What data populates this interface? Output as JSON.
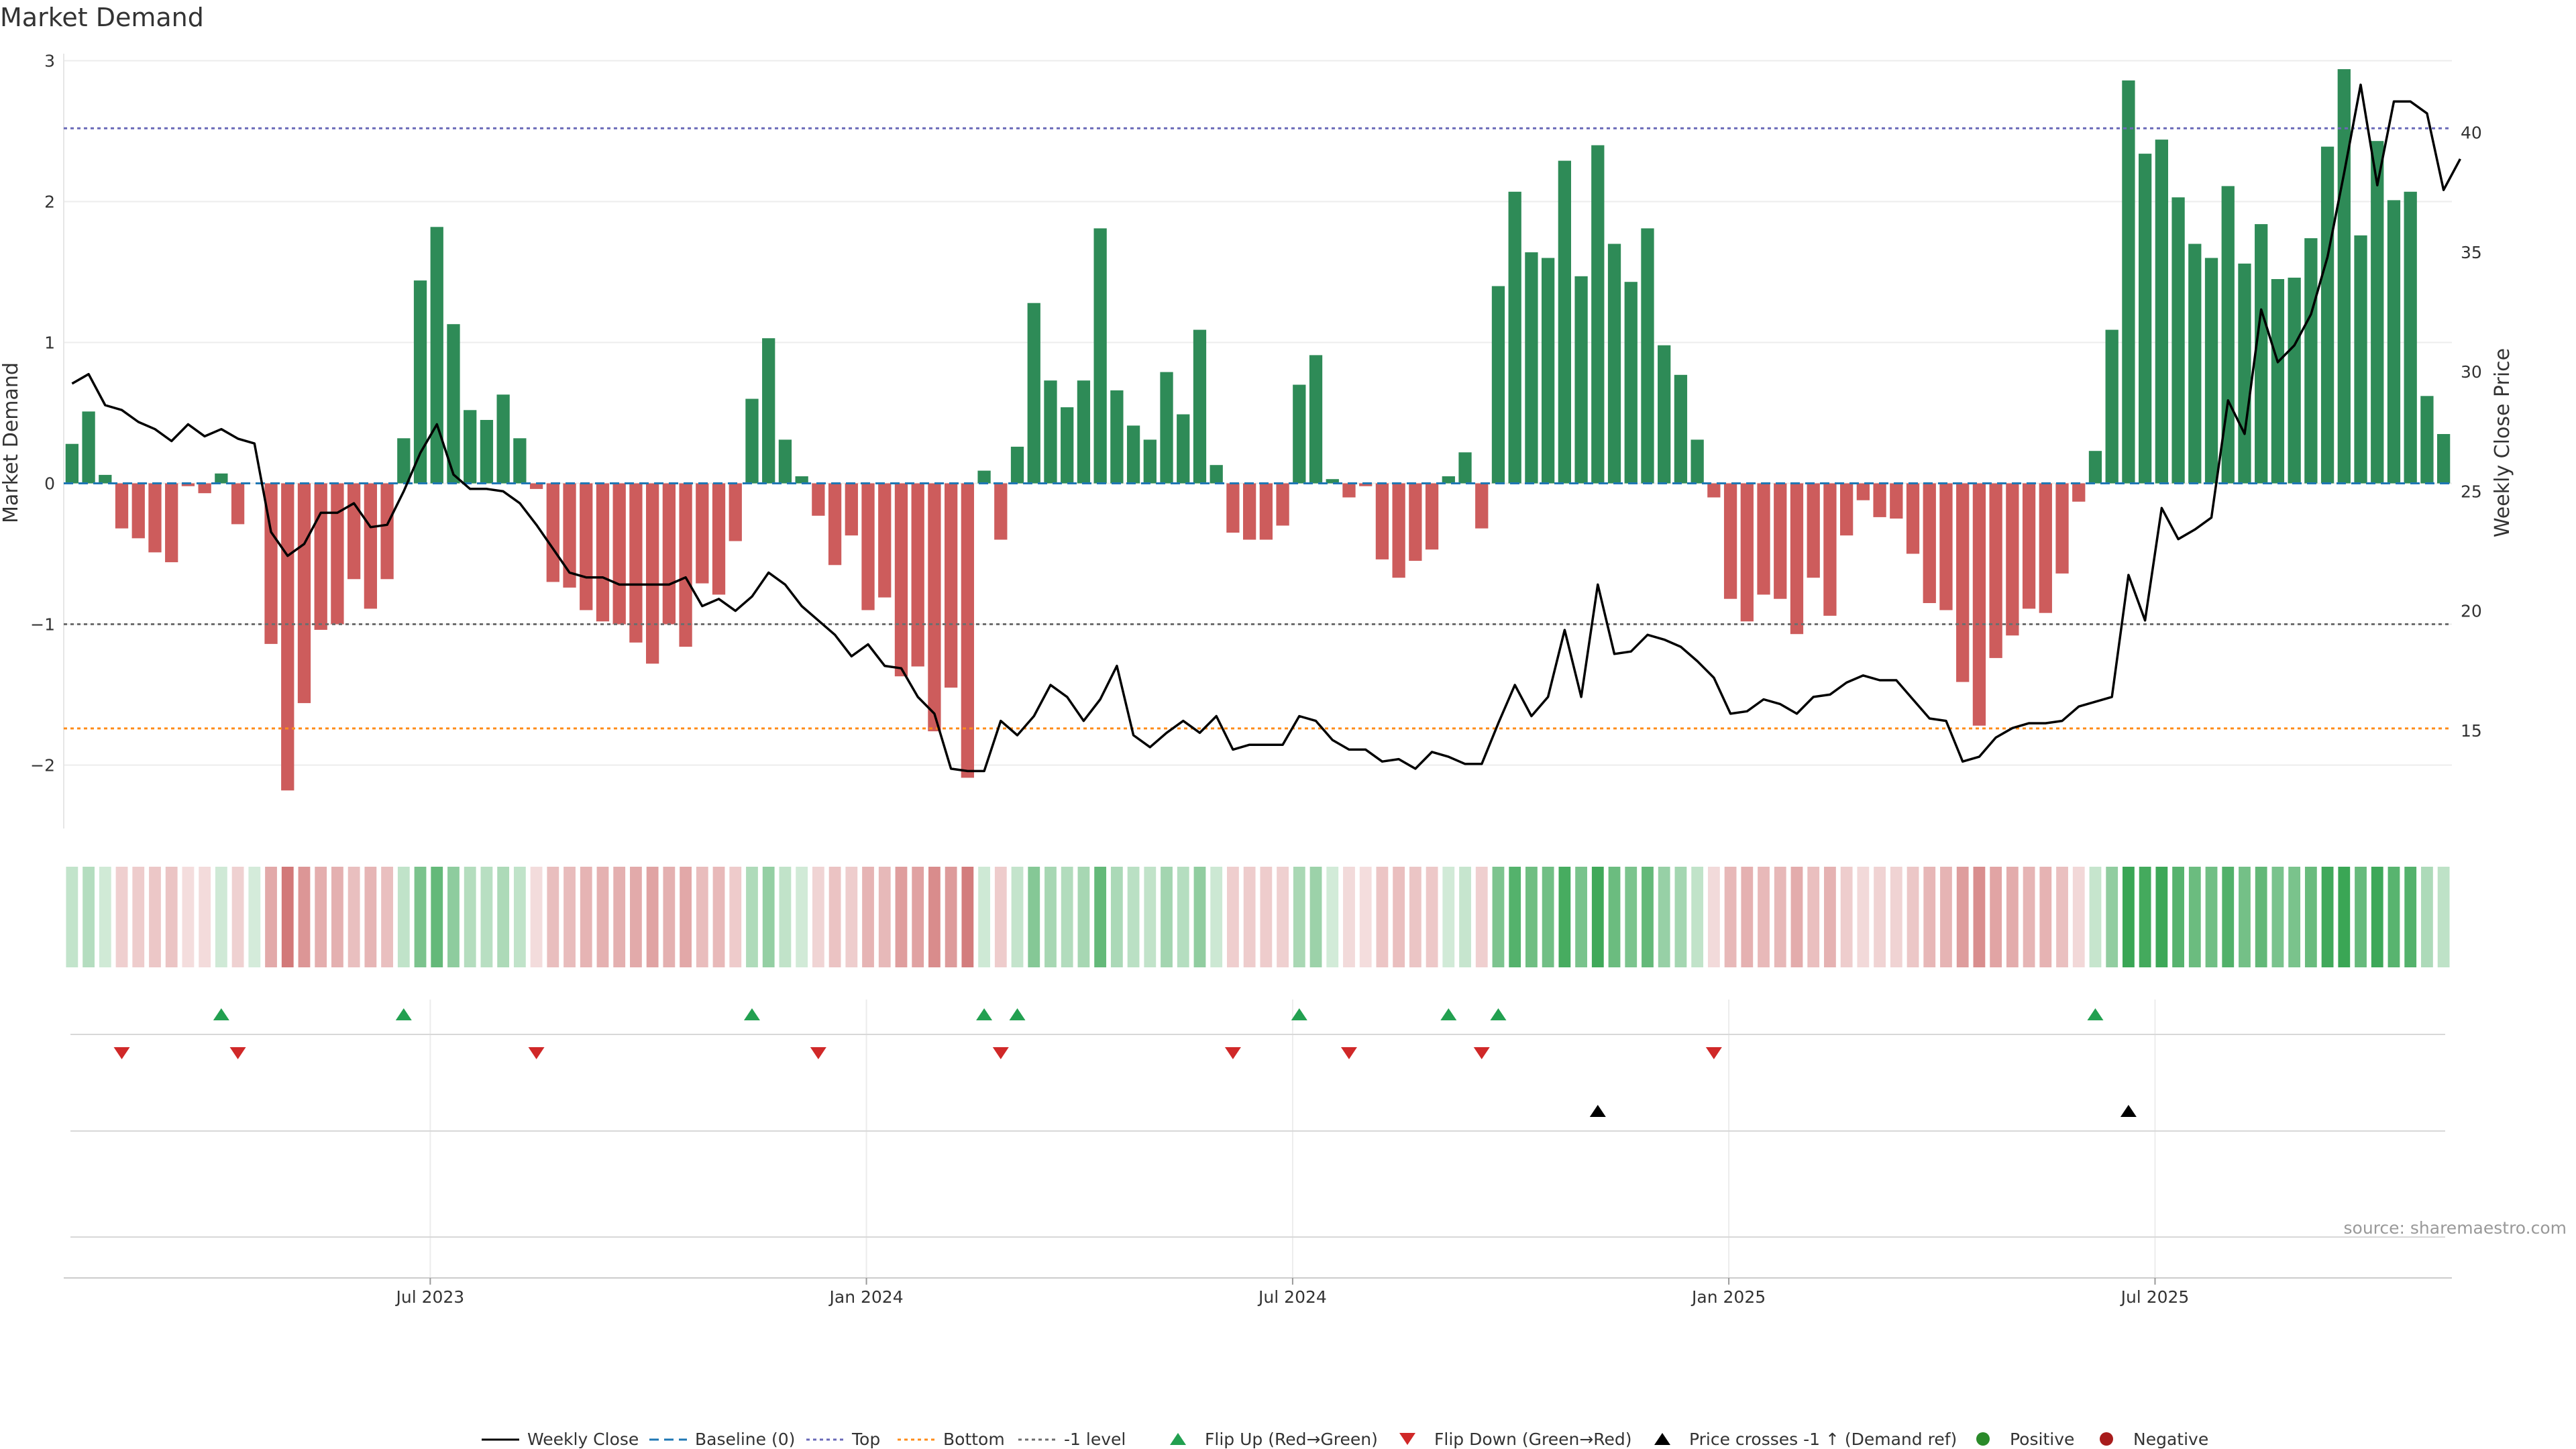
{
  "chart_data": {
    "type": "bar",
    "title": "Market Demand",
    "source": "source: sharemaestro.com",
    "left_axis": {
      "label": "Market Demand",
      "ylim": [
        -2.45,
        3.05
      ],
      "ticks": [
        3,
        2,
        1,
        0,
        -1,
        -2
      ],
      "tick_labels": [
        "3",
        "2",
        "1",
        "0",
        "−1",
        "−2"
      ]
    },
    "right_axis": {
      "label": "Weekly Close Price",
      "ylim": [
        10.9,
        43.3
      ],
      "ticks": [
        40,
        35,
        30,
        25,
        20,
        15
      ],
      "tick_labels": [
        "40",
        "35",
        "30",
        "25",
        "20",
        "15"
      ]
    },
    "x_axis": {
      "start": "2023-01-23",
      "weeks": 144,
      "tick_labels": [
        "Jul 2023",
        "Jan 2024",
        "Jul 2024",
        "Jan 2025",
        "Jul 2025"
      ],
      "tick_weeks": [
        22.1,
        48.4,
        74.1,
        100.4,
        126.1
      ]
    },
    "reference_lines": [
      {
        "name": "Baseline (0)",
        "value": 0,
        "color": "#1f77b4"
      },
      {
        "name": "Top",
        "value": 2.52,
        "color": "#6a6ab8"
      },
      {
        "name": "Bottom",
        "value": -1.74,
        "color": "#ff8c1a"
      },
      {
        "name": "-1 level",
        "value": -1,
        "color": "#6e6e6e"
      }
    ],
    "demand": [
      0.28,
      0.51,
      0.06,
      -0.32,
      -0.39,
      -0.49,
      -0.56,
      -0.02,
      -0.07,
      0.07,
      -0.29,
      0,
      -1.14,
      -2.18,
      -1.56,
      -1.04,
      -1.0,
      -0.68,
      -0.89,
      -0.68,
      0.32,
      1.44,
      1.82,
      1.13,
      0.52,
      0.45,
      0.63,
      0.32,
      -0.04,
      -0.7,
      -0.74,
      -0.9,
      -0.98,
      -1.0,
      -1.13,
      -1.28,
      -1.0,
      -1.16,
      -0.71,
      -0.79,
      -0.41,
      0.6,
      1.03,
      0.31,
      0.05,
      -0.23,
      -0.58,
      -0.37,
      -0.9,
      -0.81,
      -1.37,
      -1.3,
      -1.76,
      -1.45,
      -2.09,
      0.09,
      -0.4,
      0.26,
      1.28,
      0.73,
      0.54,
      0.73,
      1.81,
      0.66,
      0.41,
      0.31,
      0.79,
      0.49,
      1.09,
      0.13,
      -0.35,
      -0.4,
      -0.4,
      -0.3,
      0.7,
      0.91,
      0.03,
      -0.1,
      -0.02,
      -0.54,
      -0.67,
      -0.55,
      -0.47,
      0.05,
      0.22,
      -0.32,
      1.4,
      2.07,
      1.64,
      1.6,
      2.29,
      1.47,
      2.4,
      1.7,
      1.43,
      1.81,
      0.98,
      0.77,
      0.31,
      -0.1,
      -0.82,
      -0.98,
      -0.79,
      -0.82,
      -1.07,
      -0.67,
      -0.94,
      -0.37,
      -0.12,
      -0.24,
      -0.25,
      -0.5,
      -0.85,
      -0.9,
      -1.41,
      -1.72,
      -1.24,
      -1.08,
      -0.89,
      -0.92,
      -0.64,
      -0.13,
      0.23,
      1.09,
      2.86,
      2.34,
      2.44,
      2.03,
      1.7,
      1.6,
      2.11,
      1.56,
      1.84,
      1.45,
      1.46,
      1.74,
      2.39,
      2.94,
      1.76,
      2.43,
      2.01,
      2.07,
      0.62,
      0.35
    ],
    "weekly_close": [
      29.5,
      29.9,
      28.6,
      28.4,
      27.9,
      27.6,
      27.1,
      27.8,
      27.3,
      27.6,
      27.2,
      27.0,
      23.3,
      22.3,
      22.8,
      24.1,
      24.1,
      24.5,
      23.5,
      23.6,
      25.0,
      26.6,
      27.8,
      25.7,
      25.1,
      25.1,
      25.0,
      24.5,
      23.6,
      22.6,
      21.6,
      21.4,
      21.4,
      21.1,
      21.1,
      21.1,
      21.1,
      21.4,
      20.2,
      20.5,
      20.0,
      20.6,
      21.6,
      21.1,
      20.2,
      19.6,
      19.0,
      18.1,
      18.6,
      17.7,
      17.6,
      16.4,
      15.7,
      13.4,
      13.3,
      13.3,
      15.4,
      14.8,
      15.6,
      16.9,
      16.4,
      15.4,
      16.3,
      17.7,
      14.8,
      14.3,
      14.9,
      15.4,
      14.9,
      15.6,
      14.2,
      14.4,
      14.4,
      14.4,
      15.6,
      15.4,
      14.6,
      14.2,
      14.2,
      13.7,
      13.8,
      13.4,
      14.1,
      13.9,
      13.6,
      13.6,
      15.3,
      16.9,
      15.6,
      16.4,
      19.2,
      16.4,
      21.1,
      18.2,
      18.3,
      19.0,
      18.8,
      18.5,
      17.9,
      17.2,
      15.7,
      15.8,
      16.3,
      16.1,
      15.7,
      16.4,
      16.5,
      17.0,
      17.3,
      17.1,
      17.1,
      16.3,
      15.5,
      15.4,
      13.7,
      13.9,
      14.7,
      15.1,
      15.3,
      15.3,
      15.4,
      16.0,
      16.2,
      16.4,
      21.5,
      19.6,
      24.3,
      23.0,
      23.4,
      23.9,
      28.8,
      27.4,
      32.6,
      30.4,
      31.1,
      32.4,
      34.8,
      38.3,
      42.0,
      37.8,
      41.3,
      41.3,
      40.8,
      37.6,
      38.9
    ],
    "flip_up_weeks": [
      9.5,
      20.5,
      41.5,
      55.5,
      57.5,
      74.5,
      83.5,
      86.5,
      122.5
    ],
    "flip_down_weeks": [
      3.5,
      10.5,
      28.5,
      45.5,
      56.5,
      70.5,
      77.5,
      85.5,
      99.5
    ],
    "price_cross_weeks": [
      92.5,
      124.5
    ],
    "legend": [
      "Weekly Close",
      "Baseline (0)",
      "Top",
      "Bottom",
      "-1 level",
      "Flip Up (Red→Green)",
      "Flip Down (Green→Red)",
      "Price crosses -1 ↑ (Demand ref)",
      "Positive",
      "Negative"
    ],
    "colors": {
      "positive": "#2e8b57",
      "negative": "#cd5c5c",
      "line": "#000000",
      "flip_up": "#22a050",
      "flip_down": "#d02828",
      "cross": "#000000",
      "positive_dot": "#2a8a2a",
      "negative_dot": "#a81c1c"
    }
  }
}
